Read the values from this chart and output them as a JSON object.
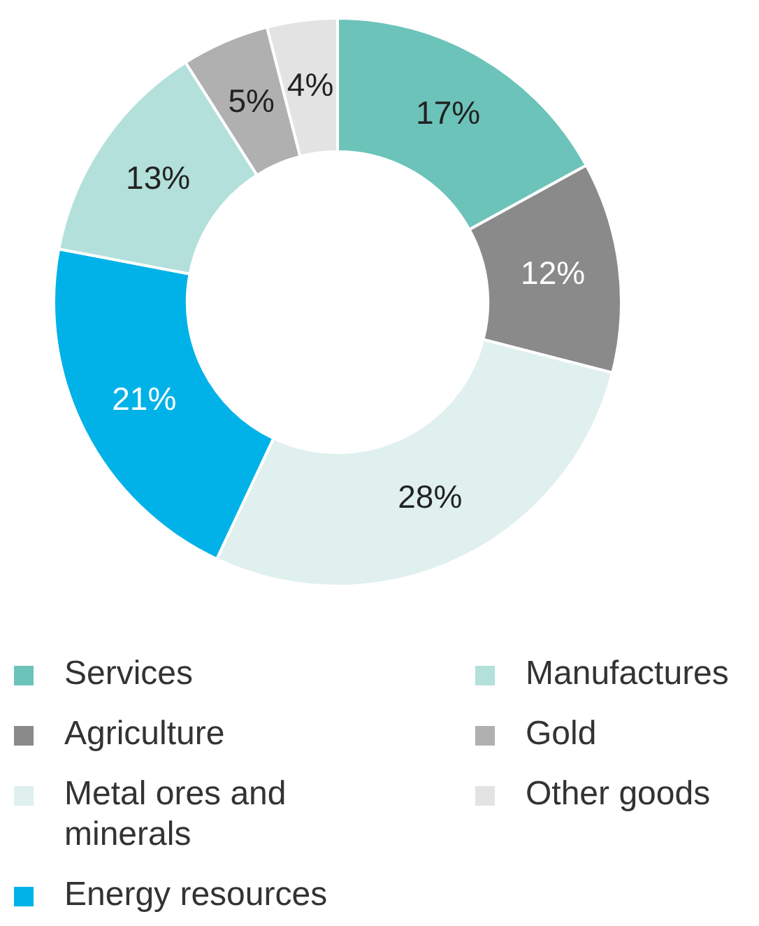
{
  "chart_data": {
    "type": "donut",
    "categories": [
      "Services",
      "Agriculture",
      "Metal ores and minerals",
      "Energy resources",
      "Manufactures",
      "Gold",
      "Other goods"
    ],
    "values": [
      17,
      12,
      28,
      21,
      13,
      5,
      4
    ],
    "colors": [
      "#6cc3b9",
      "#8a8a8a",
      "#dff0ee",
      "#00b2e8",
      "#b3e0db",
      "#b0b0b0",
      "#e3e3e3"
    ],
    "value_labels": [
      "17%",
      "12%",
      "28%",
      "21%",
      "13%",
      "5%",
      "4%"
    ],
    "legend": "bottom"
  }
}
